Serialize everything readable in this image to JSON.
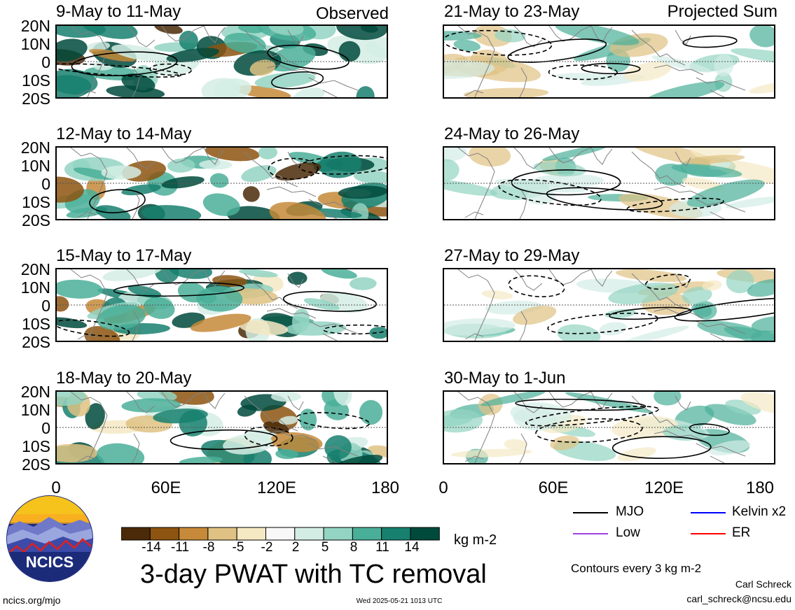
{
  "column_labels": {
    "left": "Observed",
    "right": "Projected Sum"
  },
  "panels": [
    {
      "title": "9-May to 11-May"
    },
    {
      "title": "12-May to 14-May"
    },
    {
      "title": "15-May to 17-May"
    },
    {
      "title": "18-May to 20-May"
    },
    {
      "title": "21-May to 23-May"
    },
    {
      "title": "24-May to 26-May"
    },
    {
      "title": "27-May to 29-May"
    },
    {
      "title": "30-May to 1-Jun"
    }
  ],
  "latitude_labels": [
    "20N",
    "10N",
    "0",
    "10S",
    "20S"
  ],
  "longitude_labels": [
    "0",
    "60E",
    "120E",
    "180"
  ],
  "colorbar": {
    "ticks": [
      "-14",
      "-11",
      "-8",
      "-5",
      "-2",
      "2",
      "5",
      "8",
      "11",
      "14"
    ],
    "colors": [
      "#4a2a08",
      "#8c5410",
      "#c68a3a",
      "#dfc283",
      "#f5e9c4",
      "#f8f8f8",
      "#d3ede5",
      "#93d4c2",
      "#4aaf99",
      "#17806f",
      "#004a3c"
    ],
    "units": "kg m-2"
  },
  "title": "3-day PWAT with TC removal",
  "legend": [
    {
      "label": "MJO",
      "color": "#000000"
    },
    {
      "label": "Kelvin x2",
      "color": "#0000ff"
    },
    {
      "label": "Low",
      "color": "#a040e0"
    },
    {
      "label": "ER",
      "color": "#ff0000"
    }
  ],
  "contour_note": "Contours every 3 kg m-2",
  "author": {
    "name": "Carl Schreck",
    "email": "carl_schreck@ncsu.edu"
  },
  "logo": {
    "text": "NCICS"
  },
  "footer": {
    "url": "ncics.org/mjo",
    "timestamp": "Wed 2025-05-21 1013 UTC"
  }
}
